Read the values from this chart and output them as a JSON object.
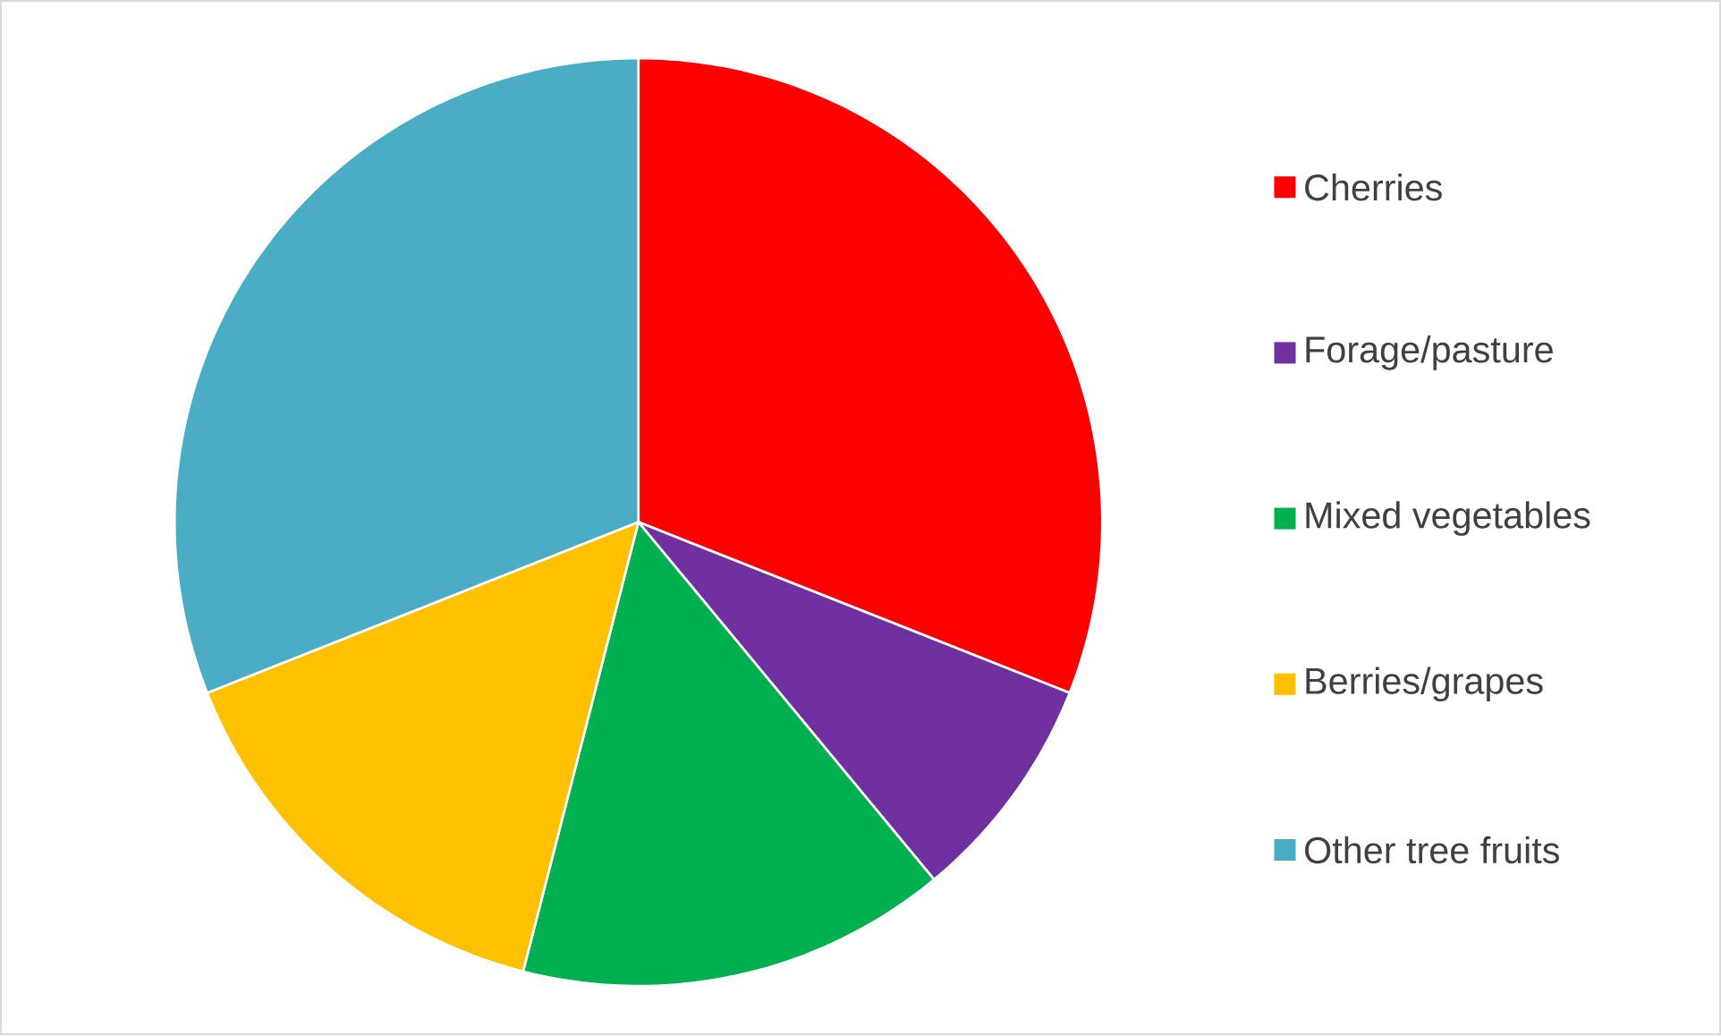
{
  "chart_data": {
    "type": "pie",
    "categories": [
      "Cherries",
      "Forage/pasture",
      "Mixed vegetables",
      "Berries/grapes",
      "Other tree fruits"
    ],
    "values": [
      31,
      8,
      15,
      15,
      31
    ],
    "colors": [
      "#ff0000",
      "#7030a0",
      "#00b050",
      "#ffc000",
      "#4bacc6"
    ],
    "legend": "right"
  }
}
